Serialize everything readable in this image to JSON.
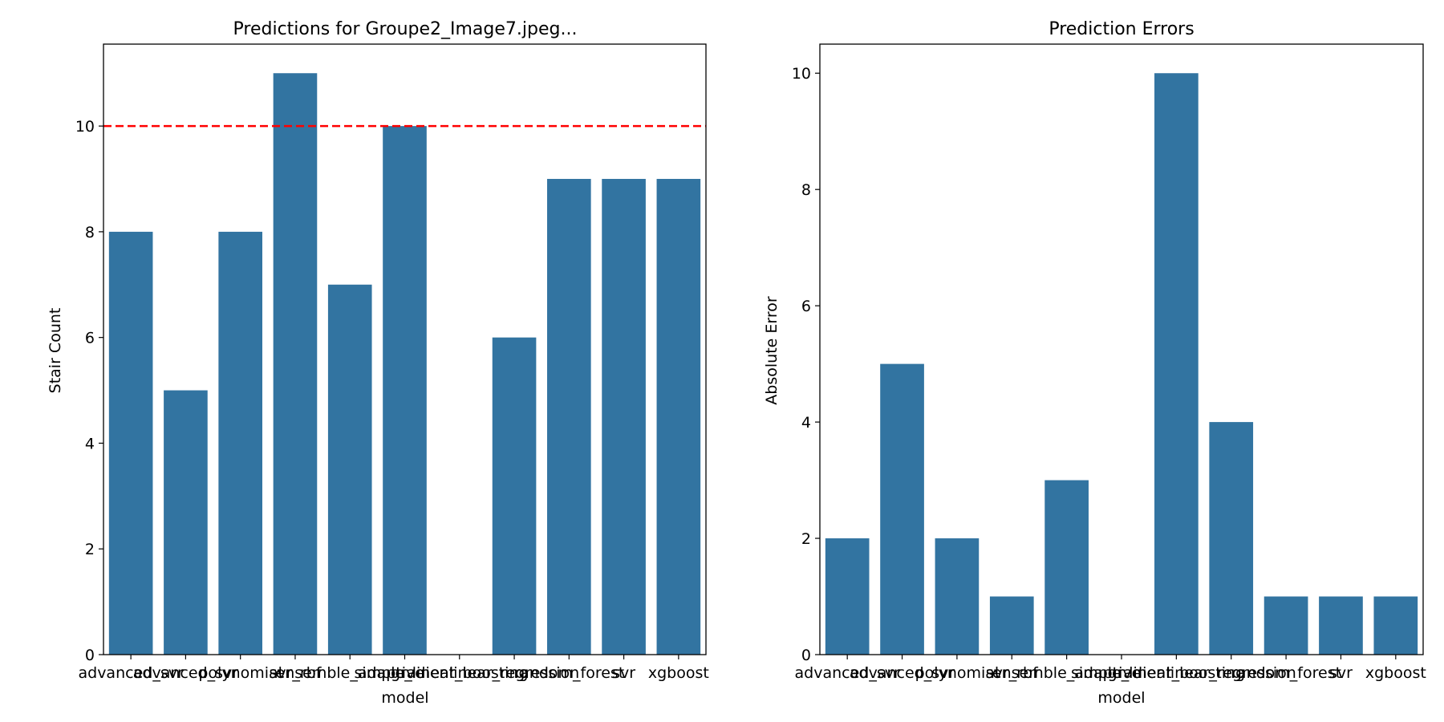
{
  "chart_data": [
    {
      "type": "bar",
      "title": "Predictions for Groupe2_Image7.jpeg...",
      "xlabel": "model",
      "ylabel": "Stair Count",
      "categories": [
        "advanced_svr",
        "advanced_svr",
        "polynomial",
        "svr_rbf",
        "ensemble_adaptive",
        "simple_linear",
        "gradient_boosting",
        "linear_regression",
        "random_forest",
        "svr",
        "xgboost"
      ],
      "x_tick_labels": [
        "advanced_svr",
        "advanced_svr",
        "polynomial",
        "svr_rbf",
        "ensemble_adaptive",
        "simple_linear",
        "gradient_boosting",
        "linear_regression",
        "random_forest",
        "svr",
        "xgboost"
      ],
      "values": [
        8,
        5,
        8,
        11,
        7,
        10,
        0,
        6,
        9,
        9,
        9
      ],
      "ylim": [
        0,
        11.55
      ],
      "yticks": [
        0,
        2,
        4,
        6,
        8,
        10
      ],
      "reference_line": {
        "value": 10,
        "color": "#ff0000",
        "style": "dashed"
      },
      "bar_color": "#3274a1",
      "grid": false,
      "legend": "none"
    },
    {
      "type": "bar",
      "title": "Prediction Errors",
      "xlabel": "model",
      "ylabel": "Absolute Error",
      "categories": [
        "advanced_svr",
        "advanced_svr",
        "polynomial",
        "svr_rbf",
        "ensemble_adaptive",
        "simple_linear",
        "gradient_boosting",
        "linear_regression",
        "random_forest",
        "svr",
        "xgboost"
      ],
      "x_tick_labels": [
        "advanced_svr",
        "advanced_svr",
        "polynomial",
        "svr_rbf",
        "ensemble_adaptive",
        "simple_linear",
        "gradient_boosting",
        "linear_regression",
        "random_forest",
        "svr",
        "xgboost"
      ],
      "values": [
        2,
        5,
        2,
        1,
        3,
        0,
        10,
        4,
        1,
        1,
        1
      ],
      "ylim": [
        0,
        10.5
      ],
      "yticks": [
        0,
        2,
        4,
        6,
        8,
        10
      ],
      "bar_color": "#3274a1",
      "grid": false,
      "legend": "none"
    }
  ]
}
